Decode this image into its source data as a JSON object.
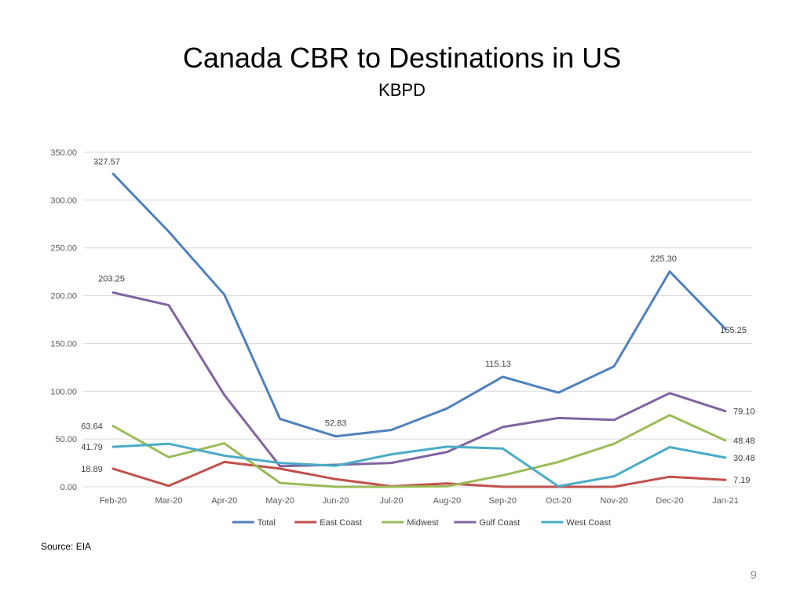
{
  "slide": {
    "source": "Source: EIA",
    "page_number": "9"
  },
  "colors": {
    "Total": "#4f81bd",
    "East Coast": "#c0504d",
    "Midwest": "#9bbb59",
    "Gulf Coast": "#8064a2",
    "West Coast": "#4bacc6",
    "grid": "#d9d9d9",
    "tick_text": "#595959"
  },
  "chart_data": {
    "type": "line",
    "title": "Canada CBR to Destinations in US",
    "subtitle": "KBPD",
    "xlabel": "",
    "ylabel": "",
    "ylim": [
      0,
      350
    ],
    "yticks": [
      "0.00",
      "50.00",
      "100.00",
      "150.00",
      "200.00",
      "250.00",
      "300.00",
      "350.00"
    ],
    "grid": true,
    "legend": "bottom",
    "categories": [
      "Feb-20",
      "Mar-20",
      "Apr-20",
      "May-20",
      "Jun-20",
      "Jul-20",
      "Aug-20",
      "Sep-20",
      "Oct-20",
      "Nov-20",
      "Dec-20",
      "Jan-21"
    ],
    "series": [
      {
        "name": "Total",
        "values": [
          327.57,
          267,
          201,
          71,
          52.83,
          59.5,
          82,
          115.13,
          98.5,
          126,
          225.3,
          165.25
        ]
      },
      {
        "name": "East Coast",
        "values": [
          18.89,
          1,
          26,
          19,
          8,
          0.5,
          3.5,
          0,
          0,
          0,
          10.5,
          7.19
        ]
      },
      {
        "name": "Midwest",
        "values": [
          63.64,
          31,
          45.5,
          4,
          0,
          0,
          0.5,
          12,
          26,
          45,
          75,
          48.48
        ]
      },
      {
        "name": "Gulf Coast",
        "values": [
          203.25,
          190,
          96,
          21.5,
          23,
          25,
          36.5,
          62.5,
          72,
          70,
          98,
          79.1
        ]
      },
      {
        "name": "West Coast",
        "values": [
          41.79,
          45,
          32.5,
          25,
          22,
          34,
          42,
          40,
          0.5,
          11,
          41.5,
          30.48
        ]
      }
    ],
    "data_labels": [
      {
        "series": "Total",
        "index": 0,
        "text": "327.57"
      },
      {
        "series": "Total",
        "index": 4,
        "text": "52.83"
      },
      {
        "series": "Total",
        "index": 7,
        "text": "115.13"
      },
      {
        "series": "Total",
        "index": 10,
        "text": "225.30"
      },
      {
        "series": "Total",
        "index": 11,
        "text": "165.25"
      },
      {
        "series": "Gulf Coast",
        "index": 0,
        "text": "203.25"
      },
      {
        "series": "Gulf Coast",
        "index": 11,
        "text": "79.10"
      },
      {
        "series": "Midwest",
        "index": 0,
        "text": "63.64"
      },
      {
        "series": "Midwest",
        "index": 11,
        "text": "48.48"
      },
      {
        "series": "West Coast",
        "index": 0,
        "text": "41.79"
      },
      {
        "series": "West Coast",
        "index": 11,
        "text": "30.48"
      },
      {
        "series": "East Coast",
        "index": 0,
        "text": "18.89"
      },
      {
        "series": "East Coast",
        "index": 11,
        "text": "7.19"
      }
    ]
  }
}
